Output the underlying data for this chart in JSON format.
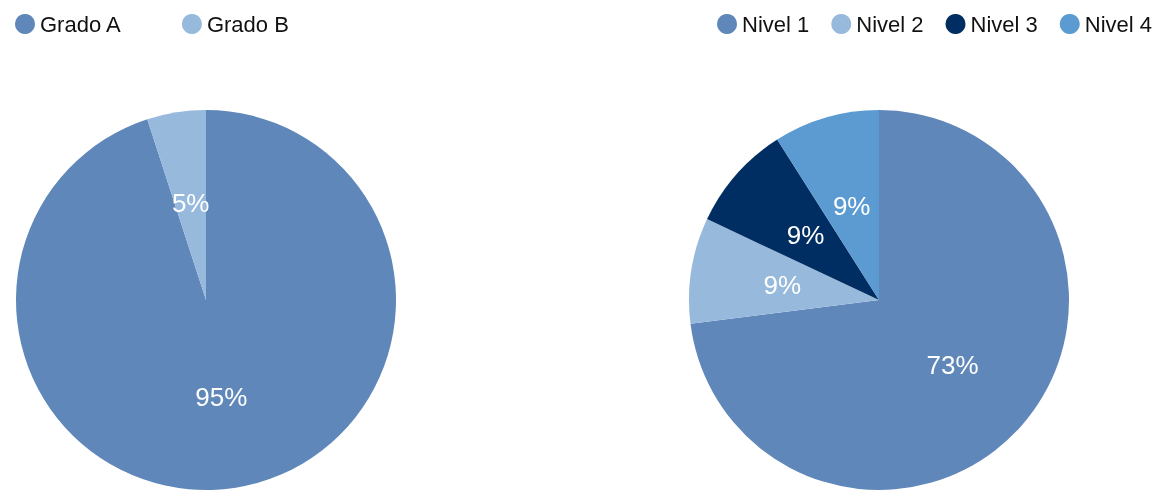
{
  "chart_data": [
    {
      "type": "pie",
      "categories": [
        "Grado A",
        "Grado B"
      ],
      "values": [
        95,
        5
      ],
      "value_labels": [
        "95%",
        "5%"
      ],
      "colors": [
        "#5f87b9",
        "#97b9dc"
      ],
      "legend": "top left"
    },
    {
      "type": "pie",
      "categories": [
        "Nivel 1",
        "Nivel 2",
        "Nivel 3",
        "Nivel 4"
      ],
      "values": [
        73,
        9,
        9,
        9
      ],
      "value_labels": [
        "73%",
        "9%",
        "9%",
        "9%"
      ],
      "colors": [
        "#5f87b9",
        "#97b9dc",
        "#002d62",
        "#5b9bd1"
      ],
      "legend": "top right"
    }
  ]
}
